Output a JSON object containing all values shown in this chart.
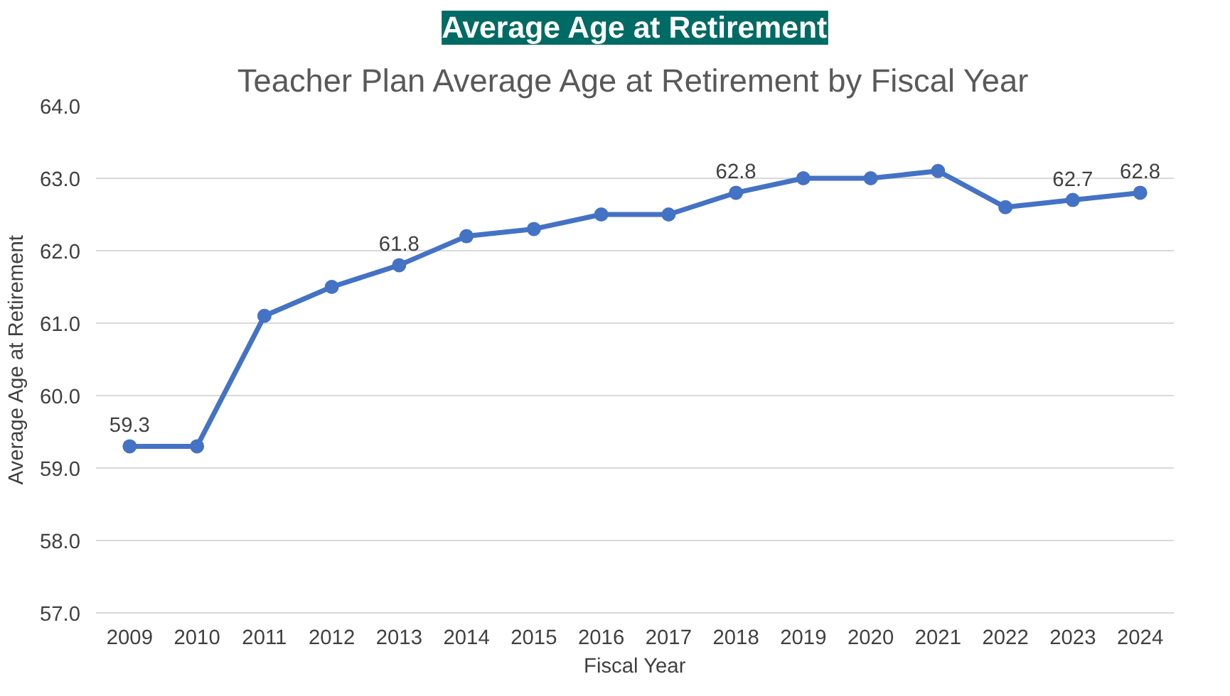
{
  "chart_data": {
    "type": "line",
    "title": "Average Age at Retirement",
    "subtitle": "Teacher Plan Average Age at Retirement by Fiscal Year",
    "xlabel": "Fiscal Year",
    "ylabel": "Average Age at Retirement",
    "categories": [
      "2009",
      "2010",
      "2011",
      "2012",
      "2013",
      "2014",
      "2015",
      "2016",
      "2017",
      "2018",
      "2019",
      "2020",
      "2021",
      "2022",
      "2023",
      "2024"
    ],
    "series": [
      {
        "color": "#4472c4",
        "values": [
          59.3,
          59.3,
          61.1,
          61.5,
          61.8,
          62.2,
          62.3,
          62.5,
          62.5,
          62.8,
          63.0,
          63.0,
          63.1,
          62.6,
          62.7,
          62.8
        ],
        "value_labels": [
          "59.3",
          null,
          null,
          null,
          "61.8",
          null,
          null,
          null,
          null,
          "62.8",
          null,
          null,
          null,
          null,
          "62.7",
          "62.8"
        ]
      }
    ],
    "ylim": [
      57.0,
      64.0
    ],
    "yticks": [
      {
        "value": 57,
        "label": "57.0"
      },
      {
        "value": 58,
        "label": "58.0"
      },
      {
        "value": 59,
        "label": "59.0"
      },
      {
        "value": 60,
        "label": "60.0"
      },
      {
        "value": 61,
        "label": "61.0"
      },
      {
        "value": 62,
        "label": "62.0"
      },
      {
        "value": 63,
        "label": "63.0"
      },
      {
        "value": 64,
        "label": "64.0"
      }
    ],
    "grid": "y",
    "marker": "circle",
    "line_style": "solid"
  }
}
